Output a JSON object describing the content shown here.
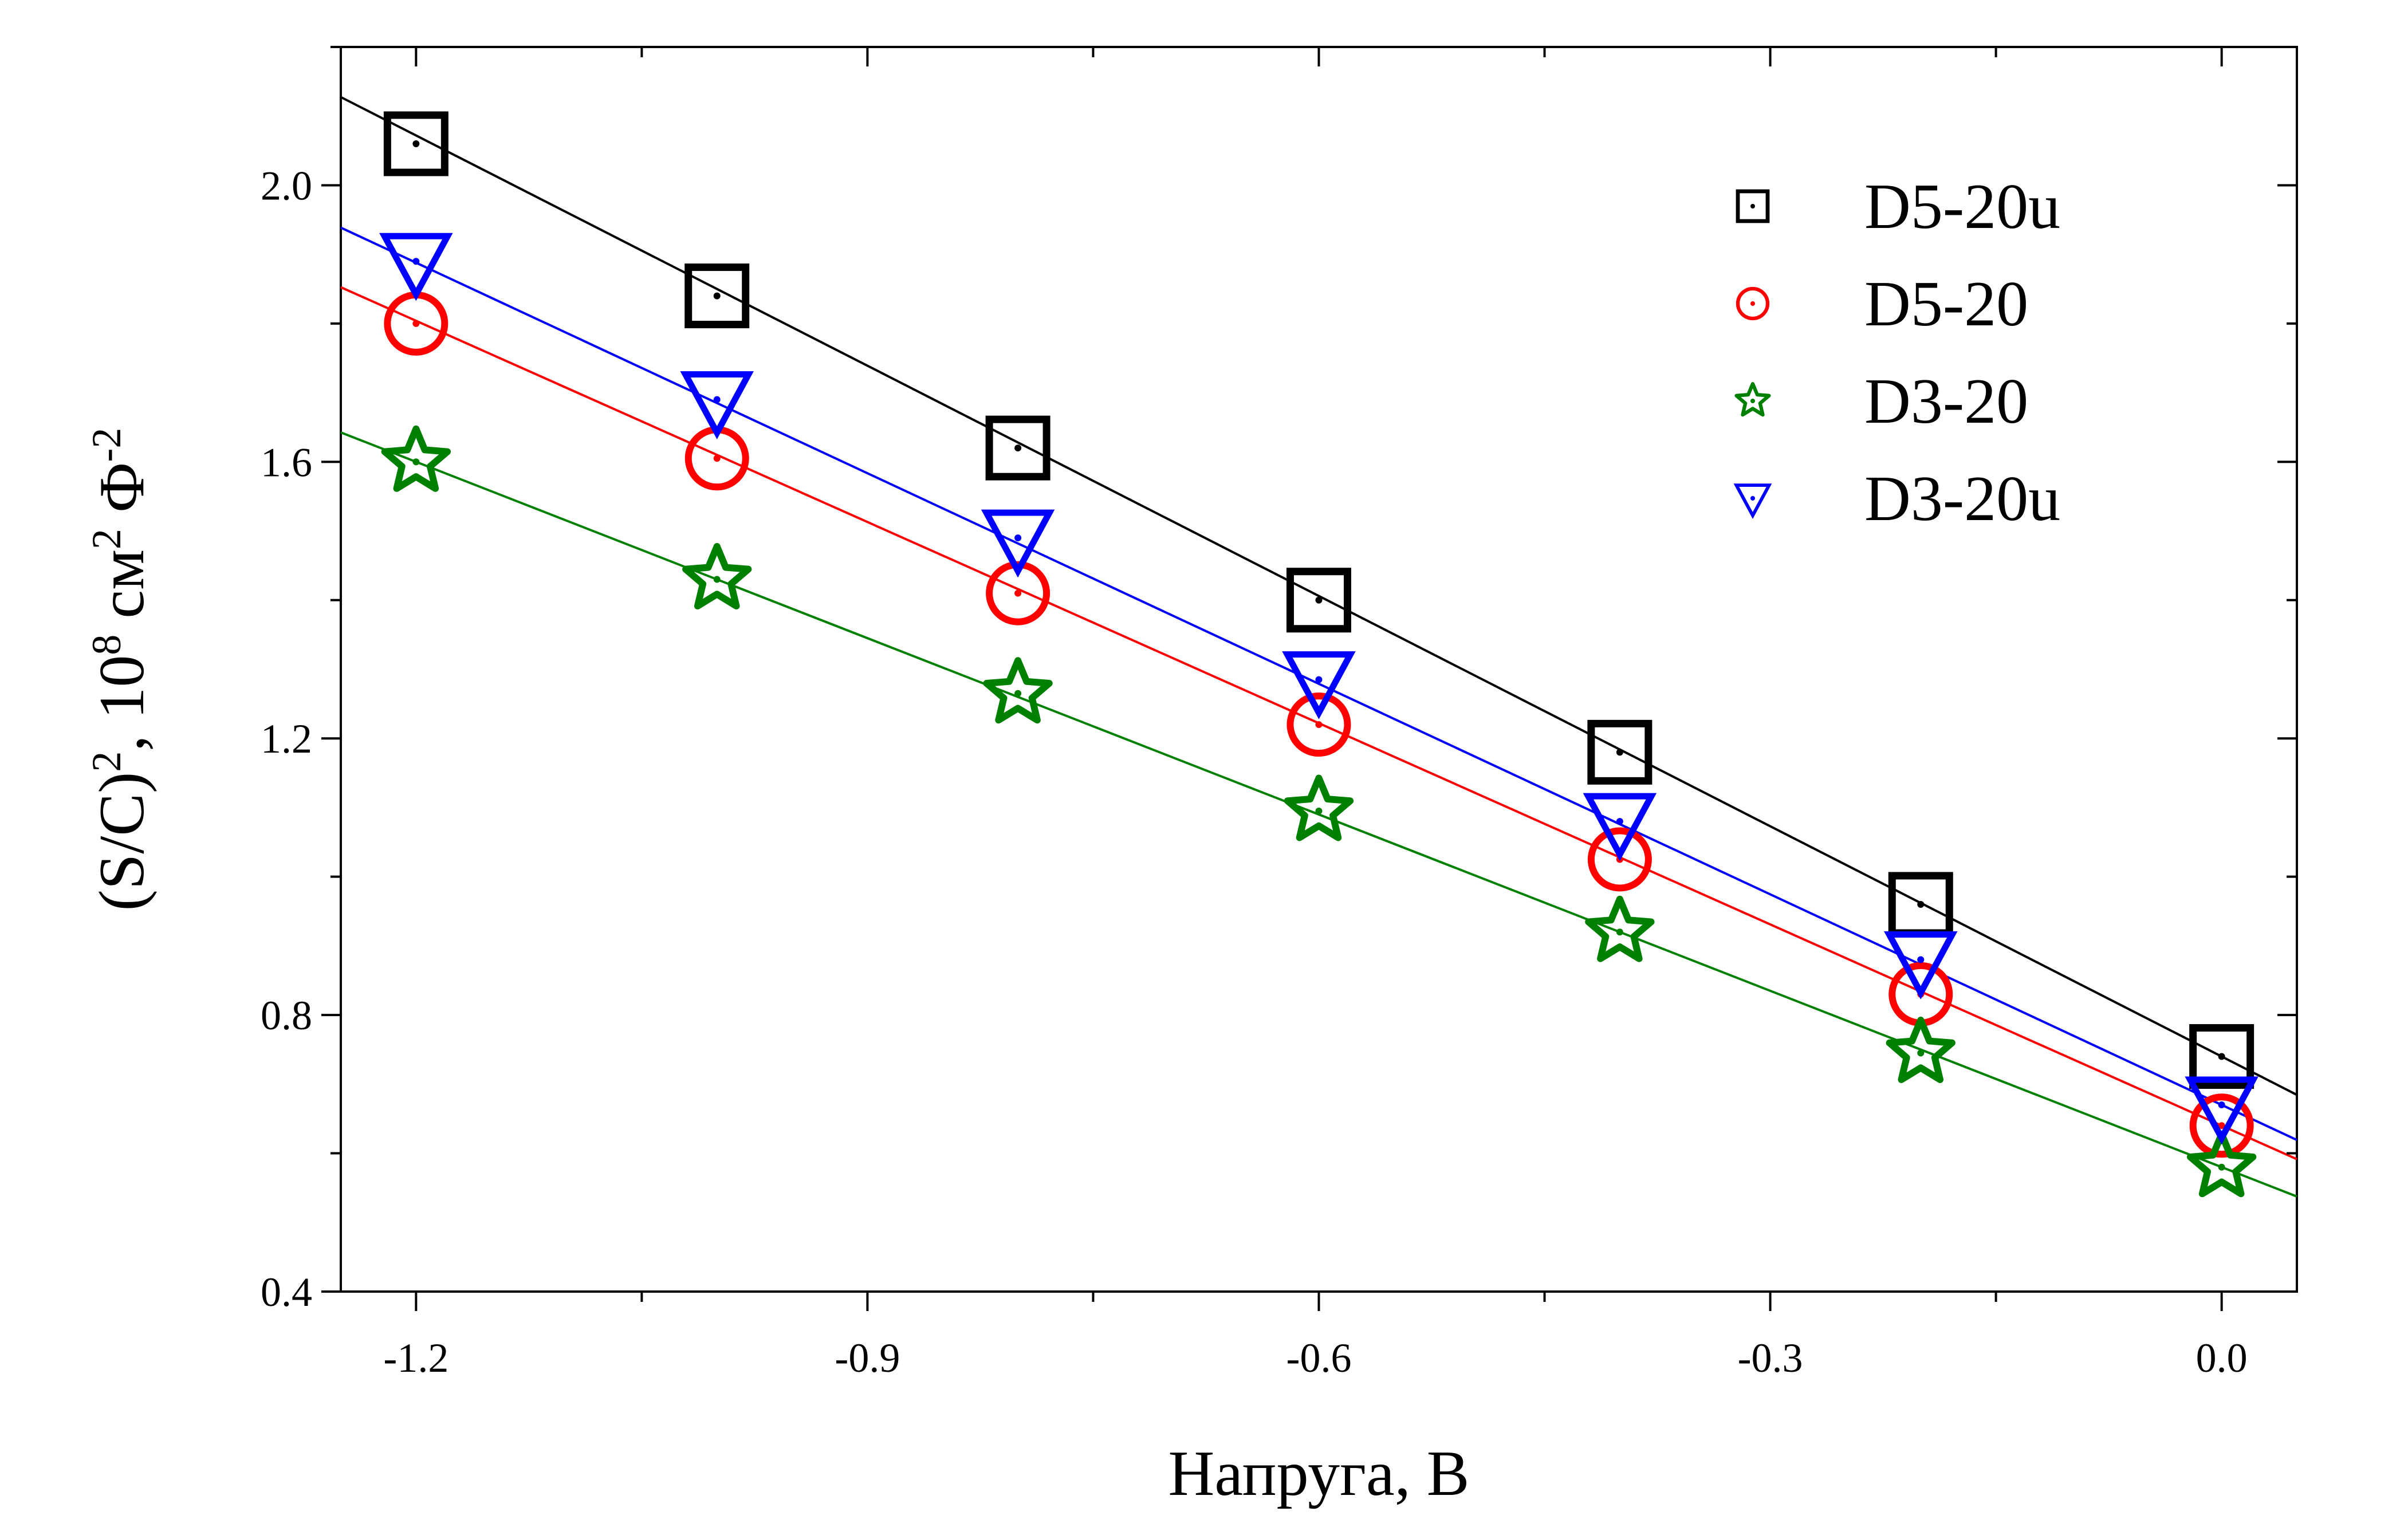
{
  "chart_data": {
    "type": "scatter",
    "title": "",
    "xlabel": "Напруга, В",
    "ylabel": {
      "main": "(S/C)",
      "main_sup": "2",
      "sep": ",  10",
      "power": "8",
      "unit1": " см",
      "unit1_sup": "2",
      "unit2": " Ф",
      "unit2_sup": "-2"
    },
    "xlim": [
      -1.25,
      0.05
    ],
    "ylim": [
      0.4,
      2.2
    ],
    "x_ticks": [
      -1.2,
      -0.9,
      -0.6,
      -0.3,
      0.0
    ],
    "x_tick_labels": [
      "-1.2",
      "-0.9",
      "-0.6",
      "-0.3",
      "0.0"
    ],
    "y_ticks": [
      0.4,
      0.8,
      1.2,
      1.6,
      2.0
    ],
    "y_tick_labels": [
      "0.4",
      "0.8",
      "1.2",
      "1.6",
      "2.0"
    ],
    "grid": false,
    "legend_position": "top-right",
    "x": [
      -1.2,
      -1.0,
      -0.8,
      -0.6,
      -0.4,
      -0.2,
      0.0
    ],
    "series": [
      {
        "name": "D5-20u",
        "marker": "square",
        "color": "#000000",
        "values": [
          2.06,
          1.84,
          1.62,
          1.4,
          1.18,
          0.96,
          0.74
        ],
        "fit": {
          "slope": -1.11,
          "intercept": 0.74
        }
      },
      {
        "name": "D5-20",
        "marker": "circle",
        "color": "#ff0000",
        "values": [
          1.8,
          1.605,
          1.41,
          1.22,
          1.025,
          0.83,
          0.64
        ],
        "fit": {
          "slope": -0.97,
          "intercept": 0.64
        }
      },
      {
        "name": "D3-20",
        "marker": "star",
        "color": "#008000",
        "values": [
          1.6,
          1.43,
          1.265,
          1.095,
          0.92,
          0.745,
          0.58
        ],
        "fit": {
          "slope": -0.85,
          "intercept": 0.58
        }
      },
      {
        "name": "D3-20u",
        "marker": "triangle-down",
        "color": "#0000ff",
        "values": [
          1.89,
          1.69,
          1.49,
          1.285,
          1.08,
          0.88,
          0.67
        ],
        "fit": {
          "slope": -1.015,
          "intercept": 0.67
        }
      }
    ]
  }
}
